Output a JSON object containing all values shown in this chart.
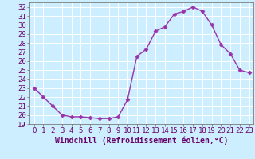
{
  "x": [
    0,
    1,
    2,
    3,
    4,
    5,
    6,
    7,
    8,
    9,
    10,
    11,
    12,
    13,
    14,
    15,
    16,
    17,
    18,
    19,
    20,
    21,
    22,
    23
  ],
  "y": [
    23.0,
    22.0,
    21.0,
    20.0,
    19.8,
    19.8,
    19.7,
    19.6,
    19.6,
    19.8,
    21.7,
    26.5,
    27.3,
    29.3,
    29.8,
    31.2,
    31.5,
    32.0,
    31.5,
    30.0,
    27.8,
    26.8,
    25.0,
    24.7
  ],
  "line_color": "#9933aa",
  "marker": "D",
  "marker_size": 2.5,
  "bg_color": "#cceeff",
  "grid_color": "#ffffff",
  "xlabel": "Windchill (Refroidissement éolien,°C)",
  "xlim": [
    -0.5,
    23.5
  ],
  "ylim": [
    19,
    32.5
  ],
  "yticks": [
    19,
    20,
    21,
    22,
    23,
    24,
    25,
    26,
    27,
    28,
    29,
    30,
    31,
    32
  ],
  "xticks": [
    0,
    1,
    2,
    3,
    4,
    5,
    6,
    7,
    8,
    9,
    10,
    11,
    12,
    13,
    14,
    15,
    16,
    17,
    18,
    19,
    20,
    21,
    22,
    23
  ],
  "xlabel_fontsize": 7,
  "tick_fontsize": 6.5,
  "line_width": 1.0
}
